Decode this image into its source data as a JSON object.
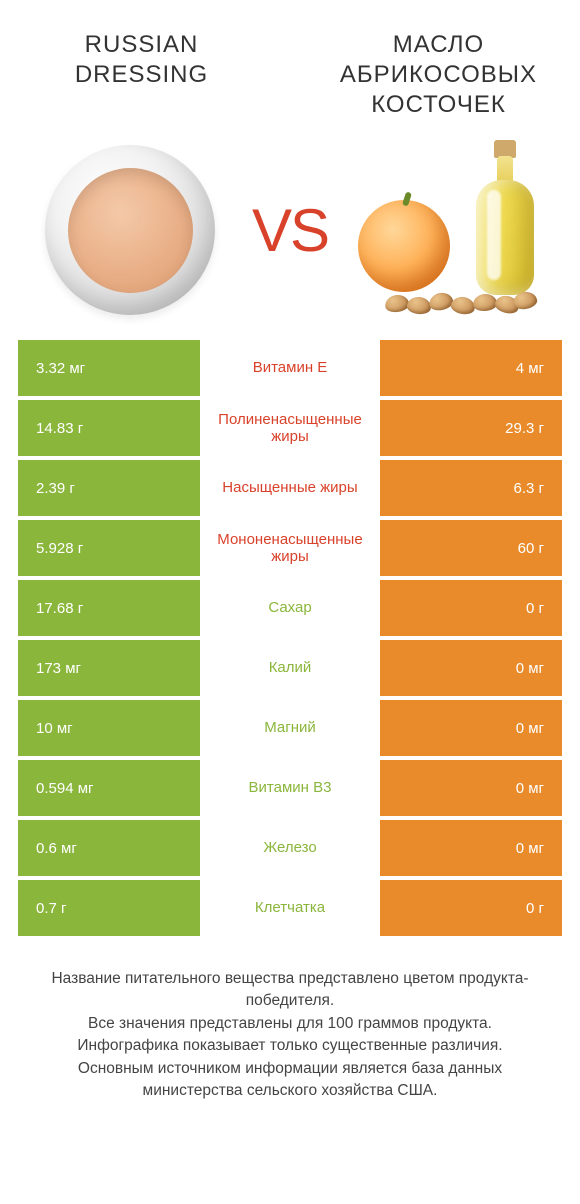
{
  "colors": {
    "green": "#8bb63c",
    "orange": "#e98b2a",
    "red": "#d9422a",
    "vs": "#d9422a"
  },
  "header": {
    "left_title": "RUSSIAN DRESSING",
    "right_title": "МАСЛО АБРИКОСОВЫХ КОСТОЧЕК",
    "vs": "VS"
  },
  "rows": [
    {
      "label": "Витамин E",
      "left": "3.32 мг",
      "right": "4 мг",
      "winner": "right"
    },
    {
      "label": "Полиненасыщенные жиры",
      "left": "14.83 г",
      "right": "29.3 г",
      "winner": "right"
    },
    {
      "label": "Насыщенные жиры",
      "left": "2.39 г",
      "right": "6.3 г",
      "winner": "right"
    },
    {
      "label": "Мононенасыщенные жиры",
      "left": "5.928 г",
      "right": "60 г",
      "winner": "right"
    },
    {
      "label": "Сахар",
      "left": "17.68 г",
      "right": "0 г",
      "winner": "left"
    },
    {
      "label": "Калий",
      "left": "173 мг",
      "right": "0 мг",
      "winner": "left"
    },
    {
      "label": "Магний",
      "left": "10 мг",
      "right": "0 мг",
      "winner": "left"
    },
    {
      "label": "Витамин B3",
      "left": "0.594 мг",
      "right": "0 мг",
      "winner": "left"
    },
    {
      "label": "Железо",
      "left": "0.6 мг",
      "right": "0 мг",
      "winner": "left"
    },
    {
      "label": "Клетчатка",
      "left": "0.7 г",
      "right": "0 г",
      "winner": "left"
    }
  ],
  "footer": {
    "l1": "Название питательного вещества представлено цветом продукта-победителя.",
    "l2": "Все значения представлены для 100 граммов продукта.",
    "l3": "Инфографика показывает только существенные различия.",
    "l4": "Основным источником информации является база данных министерства сельского хозяйства США."
  }
}
